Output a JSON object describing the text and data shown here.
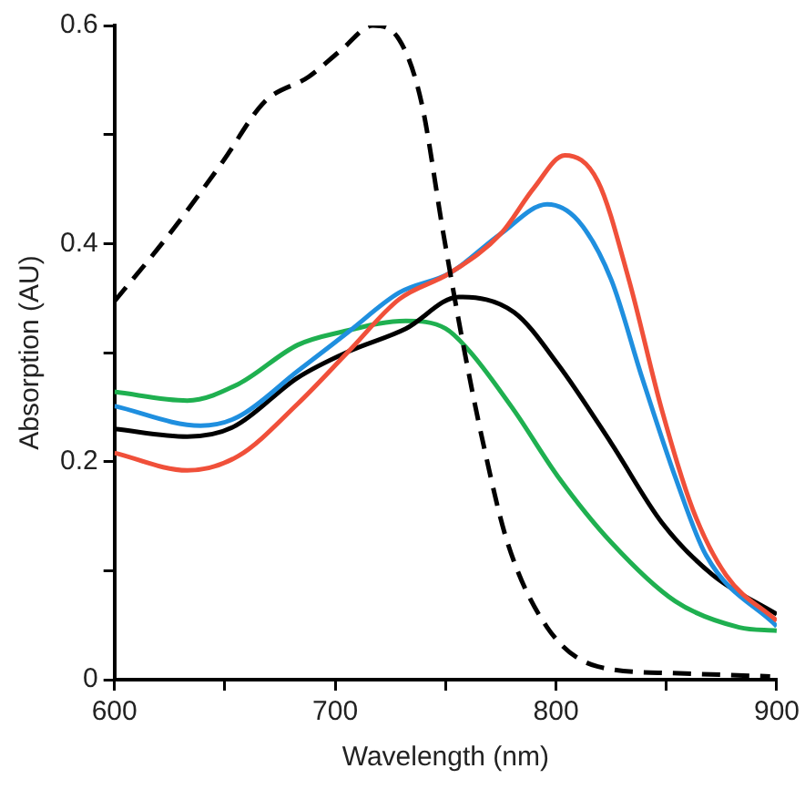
{
  "chart_data": {
    "type": "line",
    "xlabel": "Wavelength (nm)",
    "ylabel": "Absorption (AU)",
    "xlim": [
      600,
      900
    ],
    "ylim": [
      0,
      0.6
    ],
    "xticks": [
      600,
      {
        "value": 650,
        "label": null
      },
      700,
      {
        "value": 750,
        "label": null
      },
      800,
      {
        "value": 850,
        "label": null
      },
      900
    ],
    "yticks": [
      0,
      {
        "value": 0.1,
        "label": null
      },
      0.2,
      {
        "value": 0.3,
        "label": null
      },
      0.4,
      {
        "value": 0.5,
        "label": null
      },
      0.6
    ],
    "grid": false,
    "legend": false,
    "marker": "none",
    "series": [
      {
        "color": "#000000",
        "line_style": "dashed",
        "x": [
          600,
          625,
          649,
          668,
          688,
          703,
          717,
          729,
          739,
          749,
          758,
          767,
          778,
          796,
          819,
          853,
          897
        ],
        "values": [
          0.347,
          0.409,
          0.475,
          0.53,
          0.553,
          0.578,
          0.6,
          0.587,
          0.53,
          0.409,
          0.307,
          0.217,
          0.126,
          0.048,
          0.012,
          0.006,
          0.003
        ]
      },
      {
        "color": "#f0503a",
        "line_style": "solid",
        "x": [
          600,
          633,
          656,
          683,
          706,
          729,
          752,
          775,
          790,
          804,
          819,
          833,
          848,
          862,
          877,
          900
        ],
        "values": [
          0.208,
          0.192,
          0.205,
          0.253,
          0.301,
          0.349,
          0.373,
          0.409,
          0.451,
          0.481,
          0.457,
          0.367,
          0.247,
          0.156,
          0.096,
          0.054
        ]
      },
      {
        "color": "#1f8fdf",
        "line_style": "solid",
        "x": [
          600,
          639,
          656,
          683,
          706,
          729,
          752,
          775,
          796,
          810,
          825,
          839,
          854,
          868,
          900
        ],
        "values": [
          0.251,
          0.233,
          0.241,
          0.283,
          0.319,
          0.355,
          0.373,
          0.409,
          0.436,
          0.421,
          0.367,
          0.277,
          0.186,
          0.114,
          0.049
        ]
      },
      {
        "color": "#000000",
        "line_style": "solid",
        "x": [
          600,
          633,
          654,
          683,
          706,
          732,
          756,
          781,
          801,
          825,
          848,
          871,
          900
        ],
        "values": [
          0.23,
          0.223,
          0.232,
          0.277,
          0.301,
          0.322,
          0.351,
          0.337,
          0.289,
          0.217,
          0.144,
          0.096,
          0.06
        ]
      },
      {
        "color": "#1fb050",
        "line_style": "solid",
        "x": [
          600,
          633,
          656,
          683,
          703,
          732,
          750,
          761,
          781,
          801,
          825,
          854,
          883,
          900
        ],
        "values": [
          0.264,
          0.256,
          0.271,
          0.307,
          0.319,
          0.329,
          0.322,
          0.301,
          0.247,
          0.186,
          0.126,
          0.072,
          0.048,
          0.045
        ]
      }
    ]
  }
}
